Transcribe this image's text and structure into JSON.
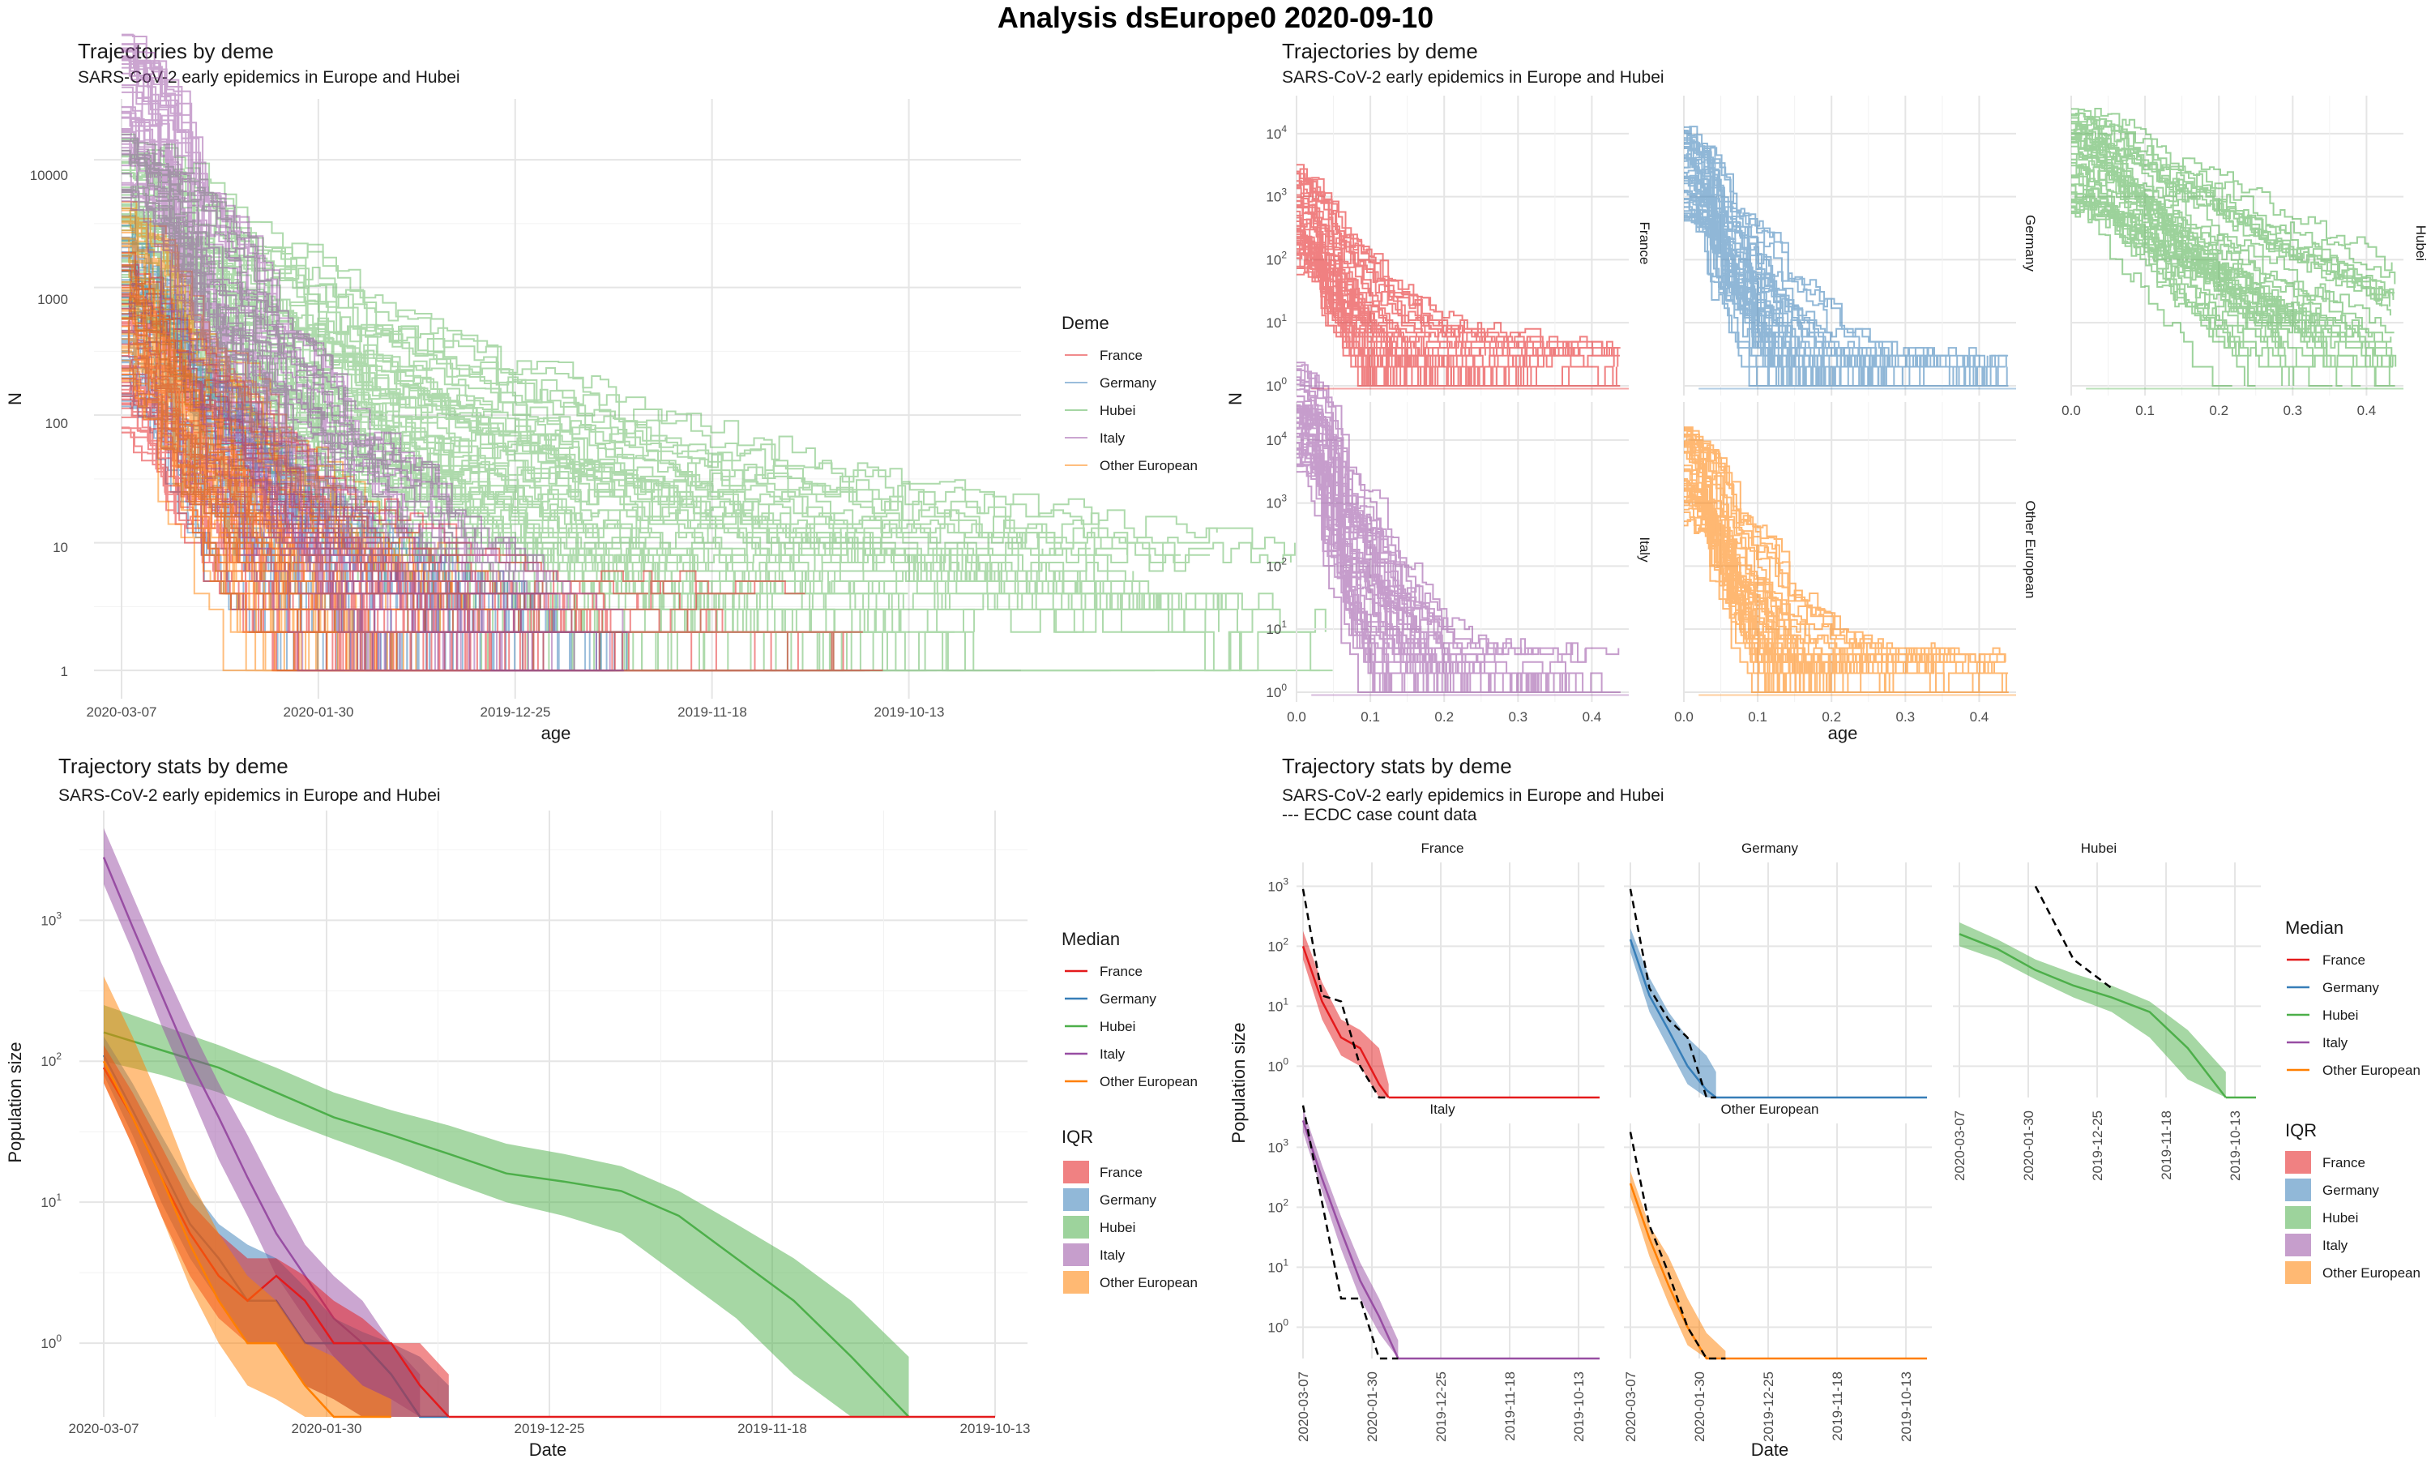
{
  "page_title": "Analysis dsEurope0 2020-09-10",
  "colors": {
    "France": "#e41a1c",
    "Germany": "#377eb8",
    "Hubei": "#4daf4a",
    "Italy": "#984ea3",
    "Other European": "#ff7f00"
  },
  "panels": {
    "traj_combined": {
      "title": "Trajectories by deme",
      "subtitle": "SARS-CoV-2 early epidemics in Europe and Hubei",
      "xlabel": "age",
      "ylabel": "N",
      "x_ticks": [
        "2020-03-07",
        "2020-01-30",
        "2019-12-25",
        "2019-11-18",
        "2019-10-13"
      ],
      "y_ticks": [
        "1",
        "10",
        "100",
        "1000",
        "10000"
      ],
      "legend_title": "Deme",
      "legend_items": [
        "France",
        "Germany",
        "Hubei",
        "Italy",
        "Other European"
      ]
    },
    "traj_facets": {
      "title": "Trajectories by deme",
      "subtitle": "SARS-CoV-2 early epidemics in Europe and Hubei",
      "xlabel": "age",
      "ylabel": "N",
      "x_ticks": [
        "0.0",
        "0.1",
        "0.2",
        "0.3",
        "0.4"
      ],
      "y_tick_base": "10",
      "y_tick_exps": [
        "0",
        "1",
        "2",
        "3",
        "4"
      ],
      "strips": [
        "France",
        "Germany",
        "Hubei",
        "Italy",
        "Other European"
      ]
    },
    "stats_combined": {
      "title": "Trajectory stats by deme",
      "subtitle": "SARS-CoV-2 early epidemics in Europe and Hubei",
      "xlabel": "Date",
      "ylabel": "Population size",
      "x_ticks": [
        "2020-03-07",
        "2020-01-30",
        "2019-12-25",
        "2019-11-18",
        "2019-10-13"
      ],
      "y_tick_base": "10",
      "y_tick_exps": [
        "0",
        "1",
        "2",
        "3"
      ],
      "legend_median_title": "Median",
      "legend_iqr_title": "IQR",
      "legend_items": [
        "France",
        "Germany",
        "Hubei",
        "Italy",
        "Other European"
      ]
    },
    "stats_facets": {
      "title": "Trajectory stats by deme",
      "subtitle": "SARS-CoV-2 early epidemics in Europe and Hubei",
      "subtitle2": "--- ECDC case count data",
      "xlabel": "Date",
      "ylabel": "Population size",
      "x_ticks": [
        "2020-03-07",
        "2020-01-30",
        "2019-12-25",
        "2019-11-18",
        "2019-10-13"
      ],
      "y_tick_base": "10",
      "y_tick_exps": [
        "0",
        "1",
        "2",
        "3"
      ],
      "strips": [
        "France",
        "Germany",
        "Hubei",
        "Italy",
        "Other European"
      ],
      "legend_median_title": "Median",
      "legend_iqr_title": "IQR",
      "legend_items": [
        "France",
        "Germany",
        "Hubei",
        "Italy",
        "Other European"
      ]
    }
  },
  "chart_data": [
    {
      "type": "line",
      "panel": "Trajectories by deme (combined)",
      "scale": "log10",
      "ylim": [
        0.6,
        30000
      ],
      "note_series": "approximate envelope of many trajectories per deme; N versus age (x_ticks in date units)",
      "series": [
        {
          "name": "France",
          "x_days": [
            0,
            10,
            20,
            30,
            45,
            60,
            90
          ],
          "N": [
            300,
            60,
            15,
            5,
            2,
            1,
            1
          ]
        },
        {
          "name": "Germany",
          "x_days": [
            0,
            10,
            20,
            30,
            45,
            60
          ],
          "N": [
            600,
            80,
            15,
            5,
            2,
            1
          ]
        },
        {
          "name": "Hubei",
          "x_days": [
            0,
            15,
            30,
            45,
            60,
            80,
            100,
            120,
            140
          ],
          "N": [
            3000,
            600,
            150,
            60,
            25,
            10,
            5,
            3,
            2
          ]
        },
        {
          "name": "Italy",
          "x_days": [
            0,
            10,
            20,
            30,
            45,
            60
          ],
          "N": [
            20000,
            1500,
            150,
            20,
            3,
            1
          ]
        },
        {
          "name": "Other European",
          "x_days": [
            0,
            10,
            20,
            30,
            45
          ],
          "N": [
            800,
            90,
            15,
            3,
            1
          ]
        }
      ]
    },
    {
      "type": "line",
      "panel": "Trajectories by deme (facets)",
      "scale": "log10",
      "xlim": [
        0,
        0.45
      ],
      "note_series": "approximate envelope of many trajectories per deme",
      "series": [
        {
          "name": "France",
          "x": [
            0,
            0.05,
            0.1,
            0.15,
            0.2,
            0.3,
            0.4
          ],
          "N": [
            500,
            60,
            10,
            3,
            1.5,
            1,
            0.7
          ]
        },
        {
          "name": "Germany",
          "x": [
            0,
            0.05,
            0.1,
            0.15,
            0.2,
            0.3,
            0.4
          ],
          "N": [
            3000,
            200,
            20,
            3,
            1,
            0.8,
            0.7
          ]
        },
        {
          "name": "Hubei",
          "x": [
            0,
            0.1,
            0.2,
            0.3,
            0.4
          ],
          "N": [
            4000,
            600,
            80,
            15,
            2
          ]
        },
        {
          "name": "Italy",
          "x": [
            0,
            0.05,
            0.1,
            0.15,
            0.2,
            0.3,
            0.35
          ],
          "N": [
            25000,
            600,
            30,
            3,
            1,
            0.8,
            0.7
          ]
        },
        {
          "name": "Other European",
          "x": [
            0,
            0.05,
            0.1,
            0.15,
            0.2,
            0.3,
            0.4
          ],
          "N": [
            3000,
            150,
            10,
            2,
            1,
            0.8,
            0.7
          ]
        }
      ]
    },
    {
      "type": "area",
      "panel": "Trajectory stats by deme (combined)",
      "scale": "log10",
      "ylim": [
        0.3,
        6000
      ],
      "x_unit": "days before 2020-03-07",
      "series": [
        {
          "name": "France",
          "x_days": [
            0,
            5,
            10,
            15,
            20,
            25,
            30,
            35,
            40,
            45,
            50,
            55,
            60
          ],
          "median": [
            90,
            40,
            15,
            6,
            3,
            2,
            3,
            2,
            1,
            1,
            1,
            0.5,
            0.3
          ],
          "q1": [
            70,
            25,
            8,
            3,
            1.5,
            1,
            1,
            0.5,
            0.4,
            0.3,
            0.3,
            0.3,
            0.3
          ],
          "q3": [
            130,
            60,
            25,
            10,
            6,
            4,
            4,
            3,
            2,
            1.5,
            1,
            1,
            0.6
          ]
        },
        {
          "name": "Germany",
          "x_days": [
            0,
            5,
            10,
            15,
            20,
            25,
            30,
            35,
            40,
            45,
            50,
            55,
            60
          ],
          "median": [
            110,
            45,
            18,
            7,
            4,
            2,
            2,
            1,
            1,
            1,
            0.6,
            0.3,
            0.3
          ],
          "q1": [
            80,
            30,
            10,
            4,
            2,
            1,
            1,
            0.5,
            0.4,
            0.3,
            0.3,
            0.3,
            0.3
          ],
          "q3": [
            150,
            70,
            30,
            13,
            7,
            5,
            4,
            2.5,
            1.5,
            1.2,
            1,
            0.8,
            0.5
          ]
        },
        {
          "name": "Hubei",
          "x_days": [
            0,
            10,
            20,
            30,
            40,
            50,
            60,
            70,
            80,
            90,
            100,
            110,
            120,
            130,
            140
          ],
          "median": [
            160,
            120,
            90,
            60,
            40,
            30,
            22,
            16,
            14,
            12,
            8,
            4,
            2,
            0.8,
            0.3
          ],
          "q1": [
            100,
            80,
            60,
            40,
            28,
            20,
            14,
            10,
            8,
            6,
            3,
            1.5,
            0.6,
            0.3,
            0.3
          ],
          "q3": [
            250,
            180,
            130,
            90,
            60,
            45,
            35,
            26,
            22,
            18,
            12,
            7,
            4,
            2,
            0.8
          ]
        },
        {
          "name": "Italy",
          "x_days": [
            0,
            5,
            10,
            15,
            20,
            25,
            30,
            35,
            40,
            45,
            50,
            55
          ],
          "median": [
            2800,
            900,
            300,
            100,
            40,
            15,
            6,
            3,
            1.5,
            1,
            0.6,
            0.3
          ],
          "q1": [
            1800,
            600,
            180,
            60,
            20,
            8,
            3,
            1.5,
            0.8,
            0.5,
            0.4,
            0.3
          ],
          "q3": [
            4500,
            1500,
            500,
            180,
            70,
            30,
            12,
            5,
            3,
            2,
            1,
            0.6
          ]
        },
        {
          "name": "Other European",
          "x_days": [
            0,
            5,
            10,
            15,
            20,
            25,
            30,
            35,
            40,
            45,
            50
          ],
          "median": [
            100,
            40,
            15,
            5,
            2,
            1,
            1,
            0.5,
            0.3,
            0.3,
            0.3
          ],
          "q1": [
            70,
            25,
            8,
            2.5,
            1,
            0.5,
            0.4,
            0.3,
            0.3,
            0.3,
            0.3
          ],
          "q3": [
            400,
            150,
            50,
            15,
            6,
            3,
            2,
            1,
            0.8,
            0.5,
            0.4
          ]
        }
      ]
    },
    {
      "type": "area",
      "panel": "Trajectory stats by deme (facets, with ECDC case counts)",
      "scale": "log10",
      "x_unit": "days before 2020-03-07",
      "series": [
        {
          "name": "France",
          "x_days": [
            0,
            10,
            20,
            30,
            40,
            45
          ],
          "median": [
            100,
            12,
            3,
            2,
            0.5,
            0.3
          ],
          "q1": [
            60,
            6,
            1.5,
            1,
            0.3,
            0.3
          ],
          "q3": [
            180,
            25,
            6,
            4,
            2,
            0.5
          ],
          "ecdc": [
            900,
            15,
            12,
            1,
            0.3,
            0.3
          ]
        },
        {
          "name": "Germany",
          "x_days": [
            0,
            10,
            20,
            30,
            40,
            45
          ],
          "median": [
            130,
            15,
            4,
            1,
            0.4,
            0.3
          ],
          "q1": [
            80,
            8,
            2,
            0.5,
            0.3,
            0.3
          ],
          "q3": [
            200,
            30,
            8,
            3,
            1.5,
            0.8
          ],
          "ecdc": [
            900,
            20,
            6,
            3,
            0.3,
            0.3
          ]
        },
        {
          "name": "Hubei",
          "x_days": [
            0,
            20,
            40,
            60,
            80,
            100,
            120,
            140
          ],
          "median": [
            160,
            90,
            40,
            22,
            14,
            8,
            2,
            0.3
          ],
          "q1": [
            100,
            60,
            28,
            14,
            8,
            3,
            0.6,
            0.3
          ],
          "q3": [
            250,
            130,
            60,
            35,
            22,
            12,
            4,
            0.8
          ],
          "ecdc": [
            0,
            0,
            1000,
            60,
            20,
            0,
            0,
            0
          ]
        },
        {
          "name": "Italy",
          "x_days": [
            0,
            10,
            20,
            30,
            40,
            50
          ],
          "median": [
            2800,
            300,
            40,
            6,
            1.5,
            0.3
          ],
          "q1": [
            1800,
            180,
            20,
            3,
            0.8,
            0.3
          ],
          "q3": [
            4500,
            500,
            70,
            12,
            3,
            0.6
          ],
          "ecdc": [
            5000,
            120,
            3,
            3,
            0.3,
            0.3
          ]
        },
        {
          "name": "Other European",
          "x_days": [
            0,
            10,
            20,
            30,
            40,
            50
          ],
          "median": [
            250,
            30,
            5,
            1,
            0.3,
            0.3
          ],
          "q1": [
            150,
            15,
            2.5,
            0.5,
            0.3,
            0.3
          ],
          "q3": [
            400,
            50,
            15,
            3,
            0.8,
            0.4
          ],
          "ecdc": [
            1800,
            50,
            8,
            1,
            0.3,
            0.3
          ]
        }
      ]
    }
  ]
}
